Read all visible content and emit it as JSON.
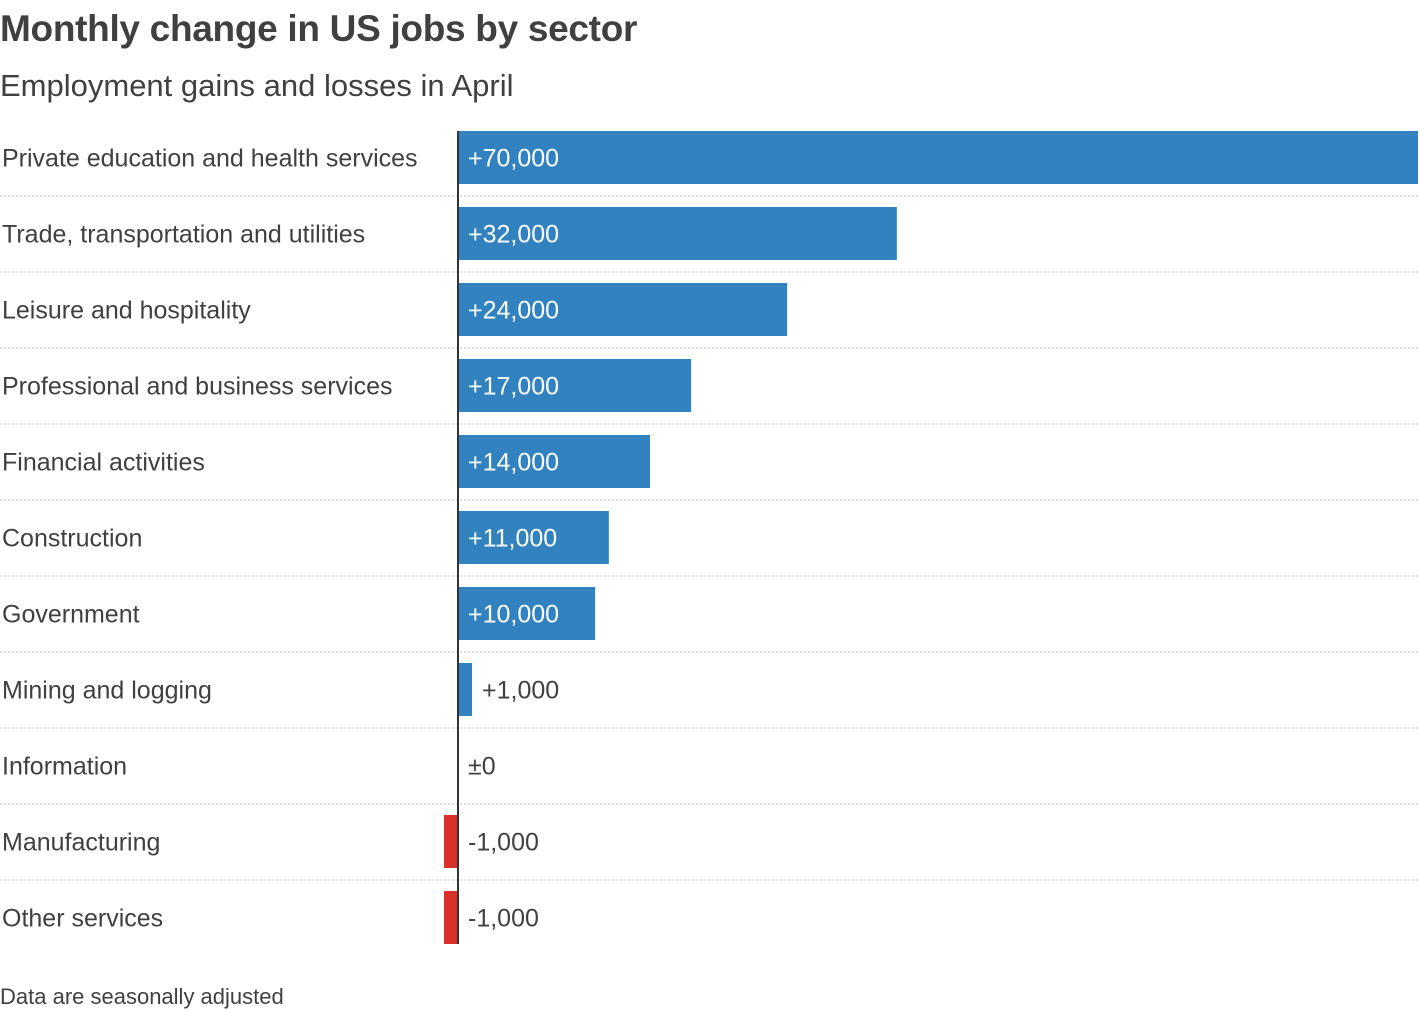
{
  "chart_data": {
    "type": "bar",
    "orientation": "horizontal",
    "title": "Monthly change in US jobs by sector",
    "subtitle": "Employment gains and losses in April",
    "categories": [
      "Private education and health services",
      "Trade, transportation and utilities",
      "Leisure and hospitality",
      "Professional and business services",
      "Financial activities",
      "Construction",
      "Government",
      "Mining and logging",
      "Information",
      "Manufacturing",
      "Other services"
    ],
    "values": [
      70000,
      32000,
      24000,
      17000,
      14000,
      11000,
      10000,
      1000,
      0,
      -1000,
      -1000
    ],
    "value_labels": [
      "+70,000",
      "+32,000",
      "+24,000",
      "+17,000",
      "+14,000",
      "+11,000",
      "+10,000",
      "+1,000",
      "±0",
      "-1,000",
      "-1,000"
    ],
    "xlim": [
      -1000,
      70000
    ],
    "positive_color": "#3282bf",
    "negative_color": "#d9302b",
    "gridlines": "dotted row separators",
    "footnote": "Data are seasonally adjusted"
  }
}
